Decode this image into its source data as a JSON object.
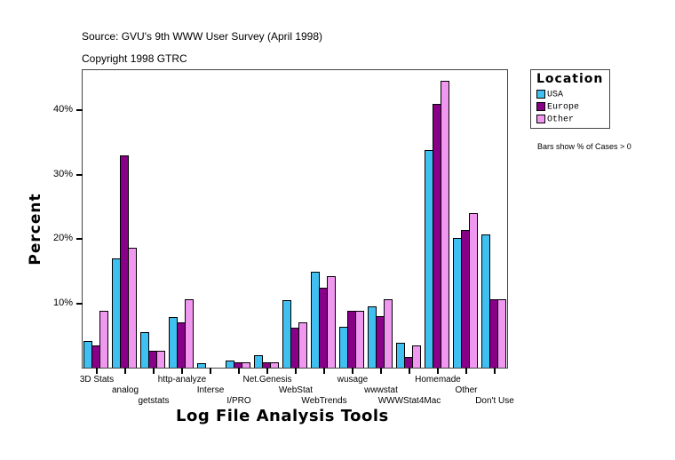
{
  "header": {
    "source": "Source: GVU's 9th WWW User Survey (April 1998)",
    "copyright": "Copyright 1998 GTRC"
  },
  "legend": {
    "title": "Location",
    "items": [
      {
        "label": "USA",
        "color": "#40c0f0"
      },
      {
        "label": "Europe",
        "color": "#880088"
      },
      {
        "label": "Other",
        "color": "#f098f0"
      }
    ]
  },
  "note": "Bars show % of Cases > 0",
  "axes": {
    "ylabel": "Percent",
    "xlabel": "Log File Analysis Tools",
    "yticks": [
      "10%",
      "20%",
      "30%",
      "40%"
    ]
  },
  "chart_data": {
    "type": "bar",
    "title": "",
    "subtitle": "Source: GVU's 9th WWW User Survey (April 1998) / Copyright 1998 GTRC",
    "xlabel": "Log File Analysis Tools",
    "ylabel": "Percent",
    "ylim": [
      0,
      46
    ],
    "yticks": [
      10,
      20,
      30,
      40
    ],
    "grid": false,
    "legend_position": "right",
    "legend_title": "Location",
    "annotation": "Bars show % of Cases > 0",
    "categories": [
      "3D Stats",
      "analog",
      "getstats",
      "http-analyze",
      "Interse",
      "I/PRO",
      "Net.Genesis",
      "WebStat",
      "WebTrends",
      "wusage",
      "wwwstat",
      "WWWStat4Mac",
      "Homemade",
      "Other",
      "Don't Use"
    ],
    "series": [
      {
        "name": "USA",
        "color": "#40c0f0",
        "values": [
          4.1,
          17.0,
          5.5,
          7.9,
          0.7,
          1.1,
          1.9,
          10.5,
          14.9,
          6.3,
          9.5,
          3.9,
          33.8,
          20.1,
          20.7
        ]
      },
      {
        "name": "Europe",
        "color": "#880088",
        "values": [
          3.4,
          33.0,
          2.6,
          7.0,
          0.0,
          0.8,
          0.8,
          6.2,
          12.4,
          8.8,
          8.0,
          1.7,
          41.0,
          21.4,
          10.6
        ]
      },
      {
        "name": "Other",
        "color": "#f098f0",
        "values": [
          8.8,
          18.6,
          2.6,
          10.6,
          0.0,
          0.8,
          0.8,
          7.0,
          14.2,
          8.8,
          10.6,
          3.4,
          44.6,
          24.0,
          10.6
        ]
      }
    ]
  }
}
